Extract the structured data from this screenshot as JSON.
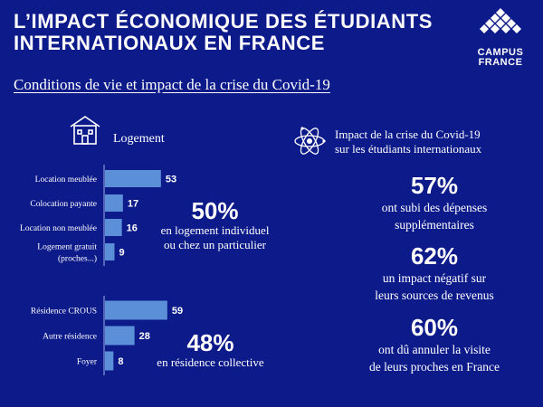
{
  "header": {
    "title_line1": "L’IMPACT ÉCONOMIQUE DES ÉTUDIANTS",
    "title_line2": "INTERNATIONAUX EN FRANCE",
    "logo_line1": "CAMPUS",
    "logo_line2": "FRANCE",
    "subtitle": "Conditions de vie et impact de la crise du Covid-19"
  },
  "housing": {
    "label": "Logement",
    "stat1": {
      "value": "50%",
      "text_line1": "en logement individuel",
      "text_line2": "ou chez un particulier"
    },
    "stat2": {
      "value": "48%",
      "text_line1": "en résidence collective"
    }
  },
  "covid": {
    "heading_line1": "Impact de la crise du Covid-19",
    "heading_line2": "sur les étudiants internationaux",
    "stats": [
      {
        "value": "57%",
        "line1": "ont subi des dépenses",
        "line2": "supplémentaires"
      },
      {
        "value": "62%",
        "line1": "un impact négatif sur",
        "line2": "leurs sources de revenus"
      },
      {
        "value": "60%",
        "line1": "ont dû annuler la visite",
        "line2": "de leurs proches en France"
      }
    ]
  },
  "chart_data": [
    {
      "type": "bar",
      "orientation": "horizontal",
      "categories": [
        "Location meublée",
        "Colocation payante",
        "Location non meublée",
        "Logement gratuit (proches...)"
      ],
      "category_lines": [
        [
          "Location meublée"
        ],
        [
          "Colocation payante"
        ],
        [
          "Location non meublée"
        ],
        [
          "Logement gratuit",
          "(proches...)"
        ]
      ],
      "values": [
        53,
        17,
        16,
        9
      ],
      "xlim": [
        0,
        60
      ]
    },
    {
      "type": "bar",
      "orientation": "horizontal",
      "categories": [
        "Résidence CROUS",
        "Autre résidence",
        "Foyer"
      ],
      "category_lines": [
        [
          "Résidence CROUS"
        ],
        [
          "Autre résidence"
        ],
        [
          "Foyer"
        ]
      ],
      "values": [
        59,
        28,
        8
      ],
      "xlim": [
        0,
        60
      ]
    }
  ],
  "colors": {
    "background": "#0c1a8a",
    "bar": "#5b8fd8",
    "text": "#ffffff"
  }
}
